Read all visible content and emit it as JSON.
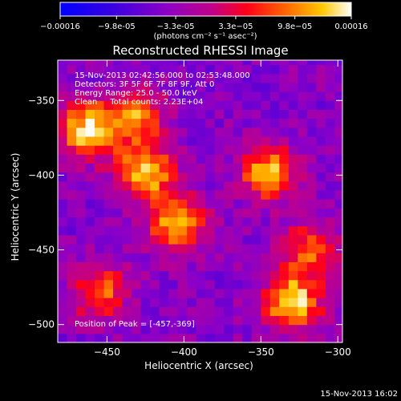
{
  "chart_data": {
    "type": "heatmap",
    "title": "Reconstructed RHESSI Image",
    "xlabel": "Heliocentric X (arcsec)",
    "ylabel": "Heliocentric Y (arcsec)",
    "xlim": [
      -482,
      -297
    ],
    "ylim": [
      -512,
      -323
    ],
    "x_ticks": [
      -450,
      -400,
      -350,
      -300
    ],
    "x_tick_labels": [
      "-450",
      "-400",
      "-350",
      "-300"
    ],
    "y_ticks": [
      -350,
      -400,
      -450,
      -500
    ],
    "y_tick_labels": [
      "-350",
      "-400",
      "-450",
      "-500"
    ],
    "colorbar": {
      "range": [
        -0.00016,
        0.00016
      ],
      "tick_values": [
        -0.00016,
        -9.8e-05,
        -3.3e-05,
        3.3e-05,
        9.8e-05,
        0.00016
      ],
      "tick_labels": [
        "-0.00016",
        "-9.8e-05",
        "-3.3e-05",
        "3.3e-05",
        "9.8e-05",
        "0.00016"
      ],
      "units_label": "(photons cm⁻² s⁻¹ asec⁻²)"
    },
    "info_lines": [
      "15-Nov-2013 02:42:56.000 to 02:53:48.000",
      "Detectors: 3F 5F 6F 7F 8F 9F, Att 0",
      "Energy Range: 25.0 - 50.0 keV",
      "Clean     Total counts: 2.23E+04"
    ],
    "peak_label": "Position of Peak = [-457,-369]",
    "footer_timestamp": "15-Nov-2013 16:02",
    "bright_regions": [
      {
        "x": -463,
        "y": -370,
        "intensity": 0.00015
      },
      {
        "x": -432,
        "y": -360,
        "intensity": 0.00011
      },
      {
        "x": -425,
        "y": -398,
        "intensity": 0.00014
      },
      {
        "x": -405,
        "y": -433,
        "intensity": 0.00013
      },
      {
        "x": -345,
        "y": -398,
        "intensity": 0.00013
      },
      {
        "x": -330,
        "y": -485,
        "intensity": 0.00016
      },
      {
        "x": -455,
        "y": -478,
        "intensity": 9e-05
      },
      {
        "x": -318,
        "y": -450,
        "intensity": 8e-05
      }
    ]
  }
}
